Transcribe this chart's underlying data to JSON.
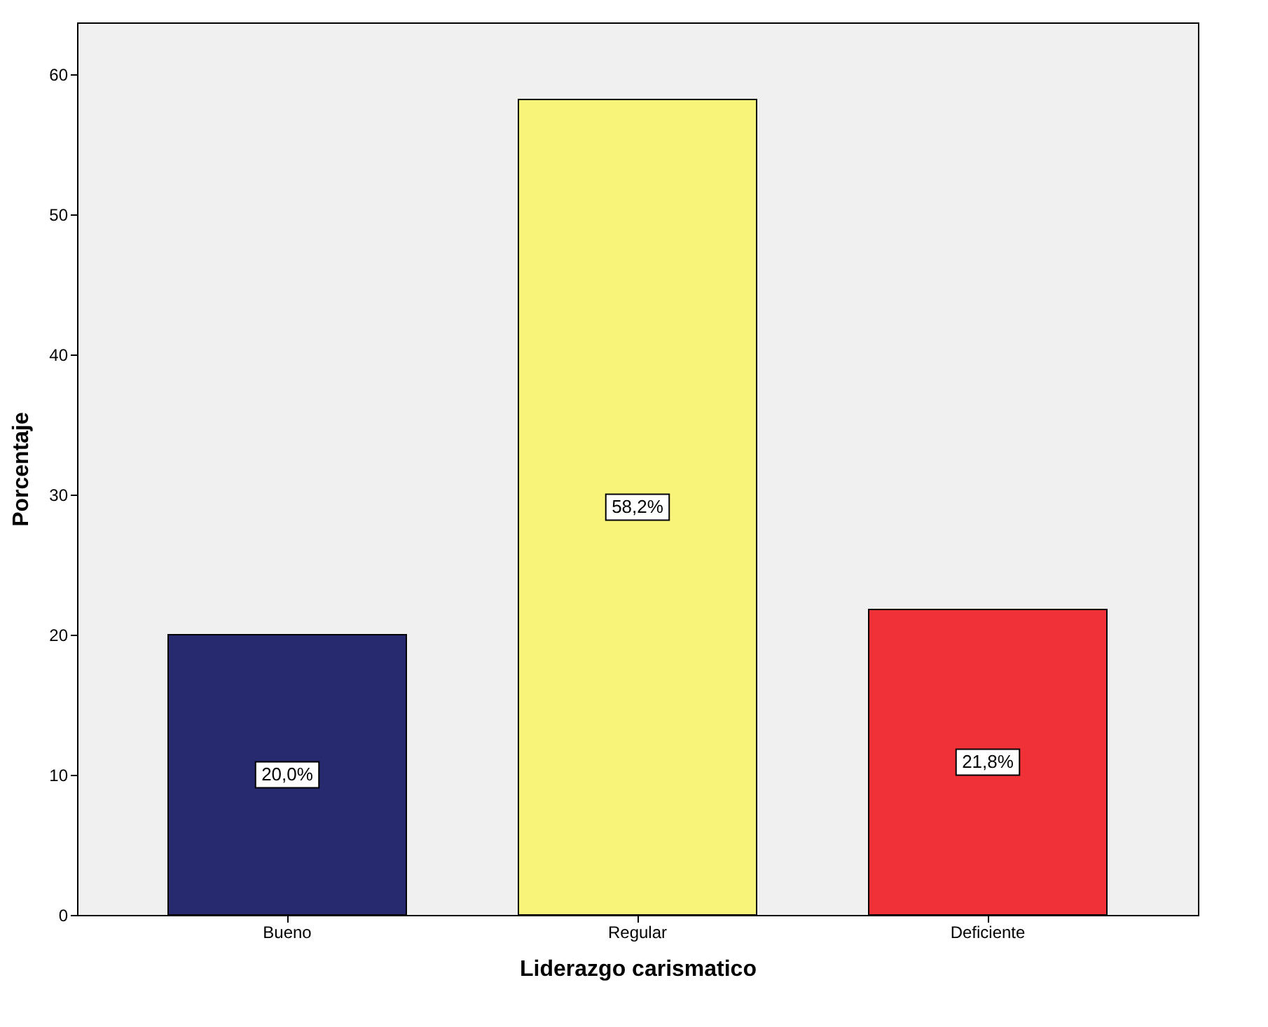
{
  "chart_data": {
    "type": "bar",
    "xlabel": "Liderazgo carismatico",
    "ylabel": "Porcentaje",
    "categories": [
      "Bueno",
      "Regular",
      "Deficiente"
    ],
    "values": [
      20.0,
      58.2,
      21.8
    ],
    "colors": [
      "#272a6e",
      "#f8f47a",
      "#f03238"
    ],
    "value_labels": [
      "20,0%",
      "58,2%",
      "21,8%"
    ],
    "ylim": [
      0,
      63.7
    ],
    "yticks": [
      0,
      10,
      20,
      30,
      40,
      50,
      60
    ],
    "grid": false
  }
}
